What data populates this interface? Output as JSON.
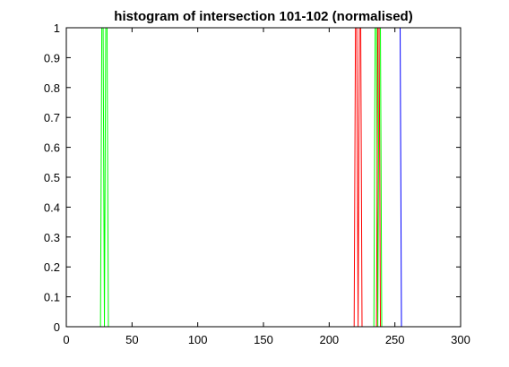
{
  "chart_data": {
    "type": "line",
    "title": "histogram of intersection 101-102 (normalised)",
    "xlabel": "",
    "ylabel": "",
    "xlim": [
      0,
      300
    ],
    "ylim": [
      0,
      1
    ],
    "x_ticks": [
      "0",
      "50",
      "100",
      "150",
      "200",
      "250",
      "300"
    ],
    "y_ticks": [
      "0",
      "0.1",
      "0.2",
      "0.3",
      "0.4",
      "0.5",
      "0.6",
      "0.7",
      "0.8",
      "0.9",
      "1"
    ],
    "grid": false,
    "legend": "none",
    "series": [
      {
        "color": "#0000ff",
        "points": [
          [
            0,
            1
          ],
          [
            254,
            1
          ],
          [
            255,
            0
          ]
        ]
      },
      {
        "color": "#00ff00",
        "points": [
          [
            26,
            0
          ],
          [
            27,
            1
          ],
          [
            28,
            1
          ],
          [
            29,
            0
          ],
          [
            30,
            1
          ],
          [
            31,
            1
          ],
          [
            32,
            0
          ]
        ]
      },
      {
        "color": "#00ff00",
        "points": [
          [
            234,
            0
          ],
          [
            235,
            1
          ],
          [
            236,
            1
          ],
          [
            237,
            0
          ],
          [
            238,
            1
          ],
          [
            239,
            1
          ],
          [
            240,
            0
          ]
        ]
      },
      {
        "color": "#ff0000",
        "points": [
          [
            219,
            0
          ],
          [
            220,
            1
          ],
          [
            221,
            1
          ],
          [
            222,
            0
          ],
          [
            223,
            1
          ],
          [
            224,
            1
          ],
          [
            225,
            0
          ]
        ]
      },
      {
        "color": "#ff0000",
        "points": [
          [
            236,
            0
          ],
          [
            237,
            1
          ],
          [
            238,
            1
          ],
          [
            239,
            0
          ]
        ]
      }
    ]
  }
}
